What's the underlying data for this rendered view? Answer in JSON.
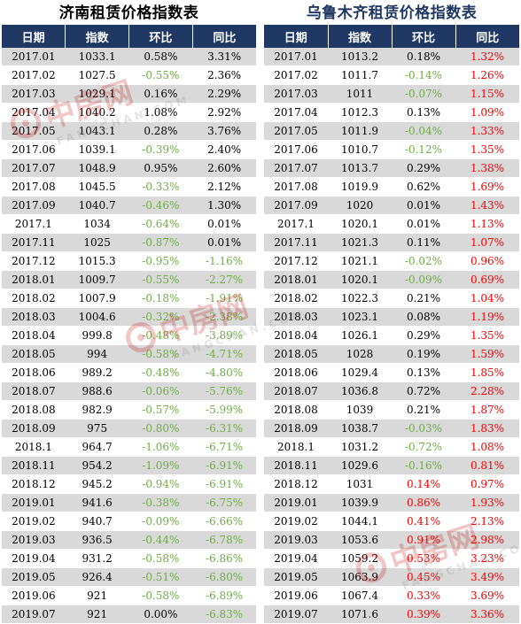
{
  "left": {
    "title": "济南租赁价格指数表",
    "headers": [
      "日期",
      "指数",
      "环比",
      "同比"
    ],
    "rows": [
      [
        "2017.01",
        "1033.1",
        "0.58%",
        "3.31%"
      ],
      [
        "2017.02",
        "1027.5",
        "-0.55%",
        "2.36%"
      ],
      [
        "2017.03",
        "1029.1",
        "0.16%",
        "2.29%"
      ],
      [
        "2017.04",
        "1040.2",
        "1.08%",
        "2.92%"
      ],
      [
        "2017.05",
        "1043.1",
        "0.28%",
        "3.76%"
      ],
      [
        "2017.06",
        "1039.1",
        "-0.39%",
        "2.40%"
      ],
      [
        "2017.07",
        "1048.9",
        "0.95%",
        "2.60%"
      ],
      [
        "2017.08",
        "1045.5",
        "-0.33%",
        "2.12%"
      ],
      [
        "2017.09",
        "1040.7",
        "-0.46%",
        "1.30%"
      ],
      [
        "2017.1",
        "1034",
        "-0.64%",
        "0.01%"
      ],
      [
        "2017.11",
        "1025",
        "-0.87%",
        "0.01%"
      ],
      [
        "2017.12",
        "1015.3",
        "-0.95%",
        "-1.16%"
      ],
      [
        "2018.01",
        "1009.7",
        "-0.55%",
        "-2.27%"
      ],
      [
        "2018.02",
        "1007.9",
        "-0.18%",
        "-1.91%"
      ],
      [
        "2018.03",
        "1004.6",
        "-0.32%",
        "-2.38%"
      ],
      [
        "2018.04",
        "999.8",
        "-0.48%",
        "-3.89%"
      ],
      [
        "2018.05",
        "994",
        "-0.58%",
        "-4.71%"
      ],
      [
        "2018.06",
        "989.2",
        "-0.48%",
        "-4.80%"
      ],
      [
        "2018.07",
        "988.6",
        "-0.06%",
        "-5.76%"
      ],
      [
        "2018.08",
        "982.9",
        "-0.57%",
        "-5.99%"
      ],
      [
        "2018.09",
        "975",
        "-0.80%",
        "-6.31%"
      ],
      [
        "2018.1",
        "964.7",
        "-1.06%",
        "-6.71%"
      ],
      [
        "2018.11",
        "954.2",
        "-1.09%",
        "-6.91%"
      ],
      [
        "2018.12",
        "945.2",
        "-0.94%",
        "-6.91%"
      ],
      [
        "2019.01",
        "941.6",
        "-0.38%",
        "-6.75%"
      ],
      [
        "2019.02",
        "940.7",
        "-0.09%",
        "-6.66%"
      ],
      [
        "2019.03",
        "936.5",
        "-0.44%",
        "-6.78%"
      ],
      [
        "2019.04",
        "931.2",
        "-0.58%",
        "-6.86%"
      ],
      [
        "2019.05",
        "926.4",
        "-0.51%",
        "-6.80%"
      ],
      [
        "2019.06",
        "921",
        "-0.58%",
        "-6.89%"
      ],
      [
        "2019.07",
        "921",
        "0.00%",
        "-6.83%"
      ]
    ]
  },
  "right": {
    "title": "乌鲁木齐租赁价格指数表",
    "headers": [
      "日期",
      "指数",
      "环比",
      "同比"
    ],
    "rows": [
      [
        "2017.01",
        "1013.2",
        "0.18%",
        "1.32%"
      ],
      [
        "2017.02",
        "1011.7",
        "-0.14%",
        "1.26%"
      ],
      [
        "2017.03",
        "1011",
        "-0.07%",
        "1.15%"
      ],
      [
        "2017.04",
        "1012.3",
        "0.13%",
        "1.09%"
      ],
      [
        "2017.05",
        "1011.9",
        "-0.04%",
        "1.33%"
      ],
      [
        "2017.06",
        "1010.7",
        "-0.12%",
        "1.35%"
      ],
      [
        "2017.07",
        "1013.7",
        "0.29%",
        "1.38%"
      ],
      [
        "2017.08",
        "1019.9",
        "0.62%",
        "1.69%"
      ],
      [
        "2017.09",
        "1020",
        "0.01%",
        "1.43%"
      ],
      [
        "2017.1",
        "1020.1",
        "0.01%",
        "1.13%"
      ],
      [
        "2017.11",
        "1021.3",
        "0.11%",
        "1.07%"
      ],
      [
        "2017.12",
        "1021.1",
        "-0.02%",
        "0.96%"
      ],
      [
        "2018.01",
        "1020.1",
        "-0.09%",
        "0.69%"
      ],
      [
        "2018.02",
        "1022.3",
        "0.21%",
        "1.04%"
      ],
      [
        "2018.03",
        "1023.1",
        "0.08%",
        "1.19%"
      ],
      [
        "2018.04",
        "1026.1",
        "0.29%",
        "1.35%"
      ],
      [
        "2018.05",
        "1028",
        "0.19%",
        "1.59%"
      ],
      [
        "2018.06",
        "1029.4",
        "0.13%",
        "1.85%"
      ],
      [
        "2018.07",
        "1036.8",
        "0.72%",
        "2.28%"
      ],
      [
        "2018.08",
        "1039",
        "0.21%",
        "1.87%"
      ],
      [
        "2018.09",
        "1038.7",
        "-0.03%",
        "1.83%"
      ],
      [
        "2018.1",
        "1031.2",
        "-0.72%",
        "1.08%"
      ],
      [
        "2018.11",
        "1029.6",
        "-0.16%",
        "0.81%"
      ],
      [
        "2018.12",
        "1031",
        "0.14%",
        "0.97%"
      ],
      [
        "2019.01",
        "1039.9",
        "0.86%",
        "1.93%"
      ],
      [
        "2019.02",
        "1044.1",
        "0.41%",
        "2.13%"
      ],
      [
        "2019.03",
        "1053.6",
        "0.91%",
        "2.98%"
      ],
      [
        "2019.04",
        "1059.2",
        "0.53%",
        "3.23%"
      ],
      [
        "2019.05",
        "1063.9",
        "0.45%",
        "3.49%"
      ],
      [
        "2019.06",
        "1067.4",
        "0.33%",
        "3.69%"
      ],
      [
        "2019.07",
        "1071.6",
        "0.39%",
        "3.36%"
      ]
    ],
    "red_mom_from_row": 23
  },
  "colors": {
    "header_bg": "#1f3864",
    "negative": "#70ad47",
    "positive_highlight": "#ff0000",
    "stripe": "#d9d9d9"
  },
  "watermark": {
    "logo_icon": "fangchan-logo-icon",
    "text": "中房网",
    "sub": "FANGCHAN.COM"
  }
}
